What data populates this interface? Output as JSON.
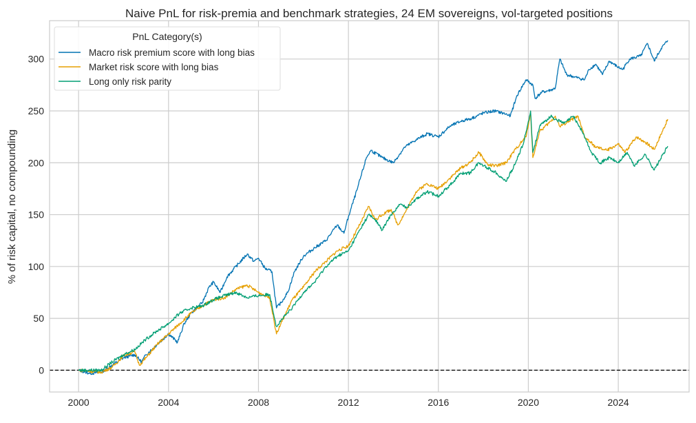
{
  "chart_data": {
    "type": "line",
    "title": "Naive PnL for risk-premia and benchmark strategies, 24 EM sovereigns, vol-targeted positions",
    "xlabel": "",
    "ylabel": "% of risk capital, no compounding",
    "xlim": [
      1998.71,
      2027.15
    ],
    "ylim": [
      -21,
      337
    ],
    "x_ticks": [
      "2000",
      "2004",
      "2008",
      "2012",
      "2016",
      "2020",
      "2024"
    ],
    "y_ticks": [
      "0",
      "50",
      "100",
      "150",
      "200",
      "250",
      "300"
    ],
    "grid": true,
    "zero_line": {
      "y": 0,
      "style": "dashed",
      "color": "#000000"
    },
    "legend": {
      "title": "PnL Category(s)",
      "placement": "top-left"
    },
    "series": [
      {
        "name": "Macro risk premium score with long bias",
        "color": "#0072b2",
        "points": [
          [
            2000,
            0
          ],
          [
            2000.5,
            -3
          ],
          [
            2001,
            -2
          ],
          [
            2001.5,
            5
          ],
          [
            2002,
            12
          ],
          [
            2002.5,
            15
          ],
          [
            2002.8,
            8
          ],
          [
            2003,
            15
          ],
          [
            2003.5,
            25
          ],
          [
            2004,
            35
          ],
          [
            2004.4,
            27
          ],
          [
            2004.7,
            45
          ],
          [
            2005,
            55
          ],
          [
            2005.5,
            65
          ],
          [
            2005.8,
            80
          ],
          [
            2006,
            85
          ],
          [
            2006.3,
            75
          ],
          [
            2006.6,
            90
          ],
          [
            2007,
            100
          ],
          [
            2007.5,
            112
          ],
          [
            2007.8,
            105
          ],
          [
            2008,
            108
          ],
          [
            2008.3,
            98
          ],
          [
            2008.6,
            95
          ],
          [
            2008.8,
            60
          ],
          [
            2009,
            65
          ],
          [
            2009.3,
            75
          ],
          [
            2009.6,
            95
          ],
          [
            2010,
            110
          ],
          [
            2010.5,
            118
          ],
          [
            2011,
            125
          ],
          [
            2011.5,
            140
          ],
          [
            2011.8,
            132
          ],
          [
            2012,
            148
          ],
          [
            2012.4,
            175
          ],
          [
            2012.8,
            205
          ],
          [
            2013,
            212
          ],
          [
            2013.5,
            205
          ],
          [
            2014,
            200
          ],
          [
            2014.5,
            215
          ],
          [
            2015,
            222
          ],
          [
            2015.5,
            228
          ],
          [
            2016,
            225
          ],
          [
            2016.5,
            235
          ],
          [
            2017,
            240
          ],
          [
            2017.5,
            243
          ],
          [
            2018,
            248
          ],
          [
            2018.5,
            250
          ],
          [
            2019,
            247
          ],
          [
            2019.2,
            245
          ],
          [
            2019.5,
            265
          ],
          [
            2019.9,
            280
          ],
          [
            2020.2,
            275
          ],
          [
            2020.3,
            262
          ],
          [
            2020.6,
            268
          ],
          [
            2021,
            270
          ],
          [
            2021.2,
            272
          ],
          [
            2021.4,
            300
          ],
          [
            2021.7,
            285
          ],
          [
            2022,
            283
          ],
          [
            2022.5,
            280
          ],
          [
            2022.7,
            290
          ],
          [
            2023,
            295
          ],
          [
            2023.3,
            285
          ],
          [
            2023.6,
            298
          ],
          [
            2024,
            292
          ],
          [
            2024.2,
            290
          ],
          [
            2024.5,
            300
          ],
          [
            2025,
            303
          ],
          [
            2025.3,
            315
          ],
          [
            2025.6,
            298
          ],
          [
            2025.9,
            310
          ],
          [
            2026.2,
            318
          ]
        ]
      },
      {
        "name": "Market risk score with long bias",
        "color": "#e69f00",
        "points": [
          [
            2000,
            0
          ],
          [
            2001,
            -2
          ],
          [
            2001.5,
            3
          ],
          [
            2002,
            14
          ],
          [
            2002.5,
            18
          ],
          [
            2002.7,
            5
          ],
          [
            2003,
            12
          ],
          [
            2003.5,
            25
          ],
          [
            2004,
            35
          ],
          [
            2004.5,
            45
          ],
          [
            2005,
            55
          ],
          [
            2005.5,
            62
          ],
          [
            2006,
            68
          ],
          [
            2006.5,
            70
          ],
          [
            2007,
            78
          ],
          [
            2007.5,
            82
          ],
          [
            2008,
            75
          ],
          [
            2008.5,
            70
          ],
          [
            2008.8,
            35
          ],
          [
            2009,
            45
          ],
          [
            2009.5,
            68
          ],
          [
            2010,
            80
          ],
          [
            2010.5,
            95
          ],
          [
            2011,
            105
          ],
          [
            2011.5,
            115
          ],
          [
            2012,
            120
          ],
          [
            2012.5,
            140
          ],
          [
            2012.9,
            158
          ],
          [
            2013.2,
            145
          ],
          [
            2013.5,
            150
          ],
          [
            2013.9,
            155
          ],
          [
            2014.2,
            140
          ],
          [
            2014.6,
            155
          ],
          [
            2015,
            172
          ],
          [
            2015.5,
            180
          ],
          [
            2016,
            175
          ],
          [
            2016.5,
            185
          ],
          [
            2017,
            195
          ],
          [
            2017.4,
            200
          ],
          [
            2017.8,
            210
          ],
          [
            2018.2,
            198
          ],
          [
            2018.6,
            197
          ],
          [
            2019,
            200
          ],
          [
            2019.5,
            215
          ],
          [
            2019.9,
            225
          ],
          [
            2020.1,
            248
          ],
          [
            2020.2,
            205
          ],
          [
            2020.5,
            230
          ],
          [
            2021,
            240
          ],
          [
            2021.2,
            245
          ],
          [
            2021.4,
            235
          ],
          [
            2021.8,
            240
          ],
          [
            2022.2,
            245
          ],
          [
            2022.5,
            225
          ],
          [
            2023,
            215
          ],
          [
            2023.5,
            212
          ],
          [
            2024,
            218
          ],
          [
            2024.3,
            210
          ],
          [
            2024.8,
            225
          ],
          [
            2025.2,
            220
          ],
          [
            2025.6,
            213
          ],
          [
            2026.2,
            242
          ]
        ]
      },
      {
        "name": "Long only risk parity",
        "color": "#009e73",
        "points": [
          [
            2000,
            0
          ],
          [
            2001,
            0
          ],
          [
            2001.5,
            8
          ],
          [
            2002,
            15
          ],
          [
            2002.5,
            20
          ],
          [
            2003,
            30
          ],
          [
            2003.5,
            38
          ],
          [
            2004,
            45
          ],
          [
            2004.5,
            55
          ],
          [
            2005,
            60
          ],
          [
            2005.5,
            62
          ],
          [
            2006,
            68
          ],
          [
            2006.5,
            72
          ],
          [
            2007,
            75
          ],
          [
            2007.5,
            70
          ],
          [
            2008,
            72
          ],
          [
            2008.5,
            73
          ],
          [
            2008.8,
            42
          ],
          [
            2009,
            48
          ],
          [
            2009.5,
            60
          ],
          [
            2010,
            75
          ],
          [
            2010.5,
            85
          ],
          [
            2011,
            100
          ],
          [
            2011.5,
            110
          ],
          [
            2012,
            115
          ],
          [
            2012.5,
            135
          ],
          [
            2012.9,
            150
          ],
          [
            2013.2,
            145
          ],
          [
            2013.5,
            135
          ],
          [
            2013.9,
            150
          ],
          [
            2014.3,
            160
          ],
          [
            2014.6,
            157
          ],
          [
            2015,
            165
          ],
          [
            2015.5,
            172
          ],
          [
            2016,
            168
          ],
          [
            2016.5,
            178
          ],
          [
            2017,
            190
          ],
          [
            2017.4,
            190
          ],
          [
            2017.8,
            200
          ],
          [
            2018.2,
            195
          ],
          [
            2018.6,
            190
          ],
          [
            2019,
            182
          ],
          [
            2019.4,
            198
          ],
          [
            2019.8,
            220
          ],
          [
            2020.1,
            250
          ],
          [
            2020.2,
            210
          ],
          [
            2020.5,
            235
          ],
          [
            2021,
            245
          ],
          [
            2021.2,
            242
          ],
          [
            2021.6,
            238
          ],
          [
            2022,
            245
          ],
          [
            2022.4,
            230
          ],
          [
            2022.8,
            210
          ],
          [
            2023.2,
            200
          ],
          [
            2023.6,
            205
          ],
          [
            2024,
            200
          ],
          [
            2024.4,
            210
          ],
          [
            2024.7,
            197
          ],
          [
            2025.2,
            208
          ],
          [
            2025.6,
            193
          ],
          [
            2026.2,
            216
          ]
        ]
      }
    ]
  }
}
